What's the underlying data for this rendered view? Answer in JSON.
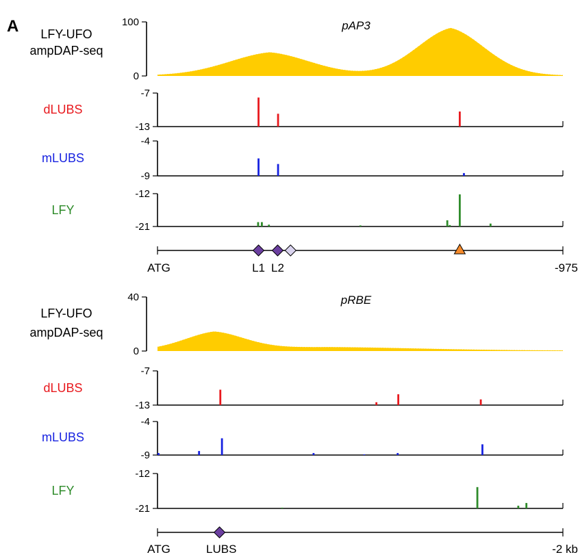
{
  "figure_label": "A",
  "colors": {
    "peak": "#FFCC00",
    "dLUBS": "#E8191E",
    "mLUBS": "#1722E0",
    "LFY": "#2E8B2A",
    "lubs_site": "#6B3FA0",
    "lubs_site_weak": "#D9D3EE",
    "lfy_site": "#F58A2B",
    "axis": "#000000"
  },
  "chart_data": [
    {
      "type": "area",
      "title": "pAP3",
      "ylabel_lines": [
        "LFY-UFO",
        "ampDAP-seq"
      ],
      "ylim": [
        0,
        100
      ],
      "yticks": [
        "100",
        "0"
      ],
      "x_range": [
        0,
        975
      ],
      "peaks": [
        {
          "center": 270,
          "height": 43,
          "width": 115
        },
        {
          "center": 705,
          "height": 88,
          "width": 95
        }
      ],
      "tracks": [
        {
          "name": "dLUBS",
          "color_key": "dLUBS",
          "ylim": [
            -13,
            -7
          ],
          "yticks": [
            "-7",
            "-13"
          ],
          "bars": [
            {
              "x": 243,
              "y": -7.8
            },
            {
              "x": 290,
              "y": -10.7
            },
            {
              "x": 727,
              "y": -10.3
            }
          ]
        },
        {
          "name": "mLUBS",
          "color_key": "mLUBS",
          "ylim": [
            -9,
            -4
          ],
          "yticks": [
            "-4",
            "-9"
          ],
          "bars": [
            {
              "x": 243,
              "y": -6.5
            },
            {
              "x": 290,
              "y": -7.3
            },
            {
              "x": 737,
              "y": -8.6
            }
          ]
        },
        {
          "name": "LFY",
          "color_key": "LFY",
          "ylim": [
            -21,
            -12
          ],
          "yticks": [
            "-12",
            "-21"
          ],
          "bars": [
            {
              "x": 242,
              "y": -19.8
            },
            {
              "x": 251,
              "y": -19.8
            },
            {
              "x": 268,
              "y": -20.5
            },
            {
              "x": 488,
              "y": -20.7
            },
            {
              "x": 697,
              "y": -19.3
            },
            {
              "x": 703,
              "y": -20.6
            },
            {
              "x": 727,
              "y": -12.2
            },
            {
              "x": 801,
              "y": -20.2
            }
          ]
        }
      ],
      "sites": [
        {
          "x": 243,
          "kind": "lubs_site"
        },
        {
          "x": 289,
          "kind": "lubs_site"
        },
        {
          "x": 320,
          "kind": "lubs_site_weak"
        },
        {
          "x": 727,
          "kind": "lfy_site"
        }
      ],
      "axis_start_label": "ATG",
      "axis_end_label": "-975",
      "site_labels": [
        {
          "text": "L1",
          "x": 243
        },
        {
          "text": "L2",
          "x": 289
        }
      ]
    },
    {
      "type": "area",
      "title": "pRBE",
      "ylabel_lines": [
        "LFY-UFO",
        "ampDAP-seq"
      ],
      "ylim": [
        0,
        40
      ],
      "yticks": [
        "40",
        "0"
      ],
      "x_range": [
        0,
        2000
      ],
      "peaks": [
        {
          "center": 280,
          "height": 13,
          "width": 170
        },
        {
          "center": 850,
          "height": 2.6,
          "width": 520
        }
      ],
      "tracks": [
        {
          "name": "dLUBS",
          "color_key": "dLUBS",
          "ylim": [
            -13,
            -7
          ],
          "yticks": [
            "-7",
            "-13"
          ],
          "bars": [
            {
              "x": 310,
              "y": -10.3
            },
            {
              "x": 1080,
              "y": -12.5
            },
            {
              "x": 1188,
              "y": -11.1
            },
            {
              "x": 1595,
              "y": -12.0
            }
          ]
        },
        {
          "name": "mLUBS",
          "color_key": "mLUBS",
          "ylim": [
            -9,
            -4
          ],
          "yticks": [
            "-4",
            "-9"
          ],
          "bars": [
            {
              "x": 5,
              "y": -8.7
            },
            {
              "x": 205,
              "y": -8.4
            },
            {
              "x": 318,
              "y": -6.5
            },
            {
              "x": 770,
              "y": -8.7
            },
            {
              "x": 1185,
              "y": -8.7
            },
            {
              "x": 1603,
              "y": -7.4
            },
            {
              "x": 1020,
              "y": -8.9
            }
          ]
        },
        {
          "name": "LFY",
          "color_key": "LFY",
          "ylim": [
            -21,
            -12
          ],
          "yticks": [
            "-12",
            "-21"
          ],
          "bars": [
            {
              "x": 615,
              "y": -20.8
            },
            {
              "x": 1578,
              "y": -15.5
            },
            {
              "x": 1780,
              "y": -20.3
            },
            {
              "x": 1820,
              "y": -19.6
            }
          ]
        }
      ],
      "sites": [
        {
          "x": 306,
          "kind": "lubs_site"
        }
      ],
      "axis_start_label": "ATG",
      "axis_end_label": "-2 kb",
      "site_labels": [
        {
          "text": "LUBS",
          "x": 315
        }
      ]
    }
  ]
}
